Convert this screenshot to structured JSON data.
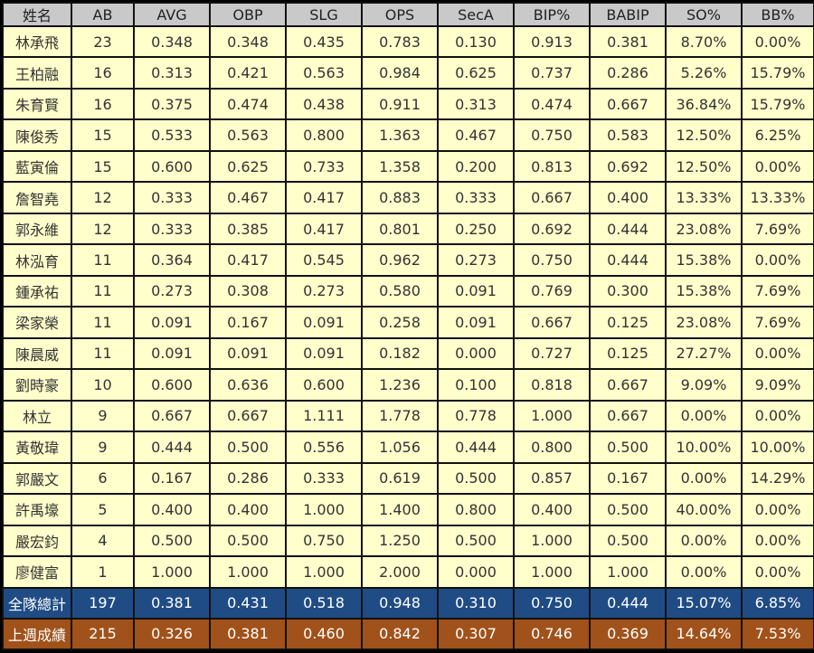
{
  "table": {
    "columns": [
      "姓名",
      "AB",
      "AVG",
      "OBP",
      "SLG",
      "OPS",
      "SecA",
      "BIP%",
      "BABIP",
      "SO%",
      "BB%"
    ],
    "rows": [
      [
        "林承飛",
        "23",
        "0.348",
        "0.348",
        "0.435",
        "0.783",
        "0.130",
        "0.913",
        "0.381",
        "8.70%",
        "0.00%"
      ],
      [
        "王柏融",
        "16",
        "0.313",
        "0.421",
        "0.563",
        "0.984",
        "0.625",
        "0.737",
        "0.286",
        "5.26%",
        "15.79%"
      ],
      [
        "朱育賢",
        "16",
        "0.375",
        "0.474",
        "0.438",
        "0.911",
        "0.313",
        "0.474",
        "0.667",
        "36.84%",
        "15.79%"
      ],
      [
        "陳俊秀",
        "15",
        "0.533",
        "0.563",
        "0.800",
        "1.363",
        "0.467",
        "0.750",
        "0.583",
        "12.50%",
        "6.25%"
      ],
      [
        "藍寅倫",
        "15",
        "0.600",
        "0.625",
        "0.733",
        "1.358",
        "0.200",
        "0.813",
        "0.692",
        "12.50%",
        "0.00%"
      ],
      [
        "詹智堯",
        "12",
        "0.333",
        "0.467",
        "0.417",
        "0.883",
        "0.333",
        "0.667",
        "0.400",
        "13.33%",
        "13.33%"
      ],
      [
        "郭永維",
        "12",
        "0.333",
        "0.385",
        "0.417",
        "0.801",
        "0.250",
        "0.692",
        "0.444",
        "23.08%",
        "7.69%"
      ],
      [
        "林泓育",
        "11",
        "0.364",
        "0.417",
        "0.545",
        "0.962",
        "0.273",
        "0.750",
        "0.444",
        "15.38%",
        "0.00%"
      ],
      [
        "鍾承祐",
        "11",
        "0.273",
        "0.308",
        "0.273",
        "0.580",
        "0.091",
        "0.769",
        "0.300",
        "15.38%",
        "7.69%"
      ],
      [
        "梁家榮",
        "11",
        "0.091",
        "0.167",
        "0.091",
        "0.258",
        "0.091",
        "0.667",
        "0.125",
        "23.08%",
        "7.69%"
      ],
      [
        "陳晨威",
        "11",
        "0.091",
        "0.091",
        "0.091",
        "0.182",
        "0.000",
        "0.727",
        "0.125",
        "27.27%",
        "0.00%"
      ],
      [
        "劉時豪",
        "10",
        "0.600",
        "0.636",
        "0.600",
        "1.236",
        "0.100",
        "0.818",
        "0.667",
        "9.09%",
        "9.09%"
      ],
      [
        "林立",
        "9",
        "0.667",
        "0.667",
        "1.111",
        "1.778",
        "0.778",
        "1.000",
        "0.667",
        "0.00%",
        "0.00%"
      ],
      [
        "黃敬瑋",
        "9",
        "0.444",
        "0.500",
        "0.556",
        "1.056",
        "0.444",
        "0.800",
        "0.500",
        "10.00%",
        "10.00%"
      ],
      [
        "郭嚴文",
        "6",
        "0.167",
        "0.286",
        "0.333",
        "0.619",
        "0.500",
        "0.857",
        "0.167",
        "0.00%",
        "14.29%"
      ],
      [
        "許禹壕",
        "5",
        "0.400",
        "0.400",
        "1.000",
        "1.400",
        "0.800",
        "0.400",
        "0.500",
        "40.00%",
        "0.00%"
      ],
      [
        "嚴宏鈞",
        "4",
        "0.500",
        "0.500",
        "0.750",
        "1.250",
        "0.500",
        "1.000",
        "0.500",
        "0.00%",
        "0.00%"
      ],
      [
        "廖健富",
        "1",
        "1.000",
        "1.000",
        "1.000",
        "2.000",
        "0.000",
        "1.000",
        "1.000",
        "0.00%",
        "0.00%"
      ]
    ],
    "total": [
      "全隊總計",
      "197",
      "0.381",
      "0.431",
      "0.518",
      "0.948",
      "0.310",
      "0.750",
      "0.444",
      "15.07%",
      "6.85%"
    ],
    "last_week": [
      "上週成績",
      "215",
      "0.326",
      "0.381",
      "0.460",
      "0.842",
      "0.307",
      "0.746",
      "0.369",
      "14.64%",
      "7.53%"
    ]
  },
  "colors": {
    "header_bg": "#c9c9c9",
    "row_bg": "#ffffcc",
    "total_bg": "#1f4c85",
    "last_week_bg": "#a0521a",
    "border": "#000000"
  }
}
